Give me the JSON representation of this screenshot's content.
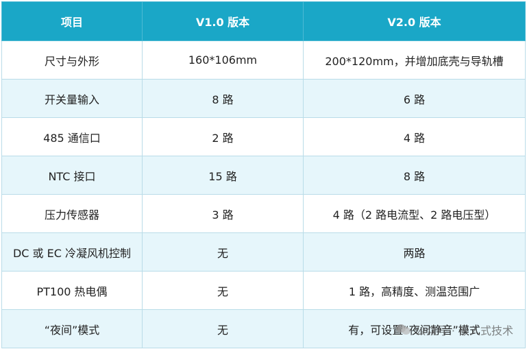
{
  "table": {
    "headers": [
      "项目",
      "V1.0 版本",
      "V2.0 版本"
    ],
    "rows": [
      [
        "尺寸与外形",
        "160*106mm",
        "200*120mm，并增加底壳与导轨槽"
      ],
      [
        "开关量输入",
        "8 路",
        "6 路"
      ],
      [
        "485 通信口",
        "2 路",
        "4 路"
      ],
      [
        "NTC 接口",
        "15 路",
        "8 路"
      ],
      [
        "压力传感器",
        "3 路",
        "4 路（2 路电流型、2 路电压型）"
      ],
      [
        "DC 或 EC 冷凝风机控制",
        "无",
        "两路"
      ],
      [
        "PT100 热电偶",
        "无",
        "1 路，高精度、测温范围广"
      ],
      [
        "“夜间”模式",
        "无",
        "有，可设置“夜间静音”模式"
      ]
    ]
  },
  "watermark": {
    "icon": "wechat-icon",
    "text": "公众号 · 嵌入式技术"
  },
  "colors": {
    "header_bg": "#1aa7c7",
    "header_text": "#ffffff",
    "row_alt_bg": "#e6f6fb",
    "border": "#b9dce8"
  }
}
